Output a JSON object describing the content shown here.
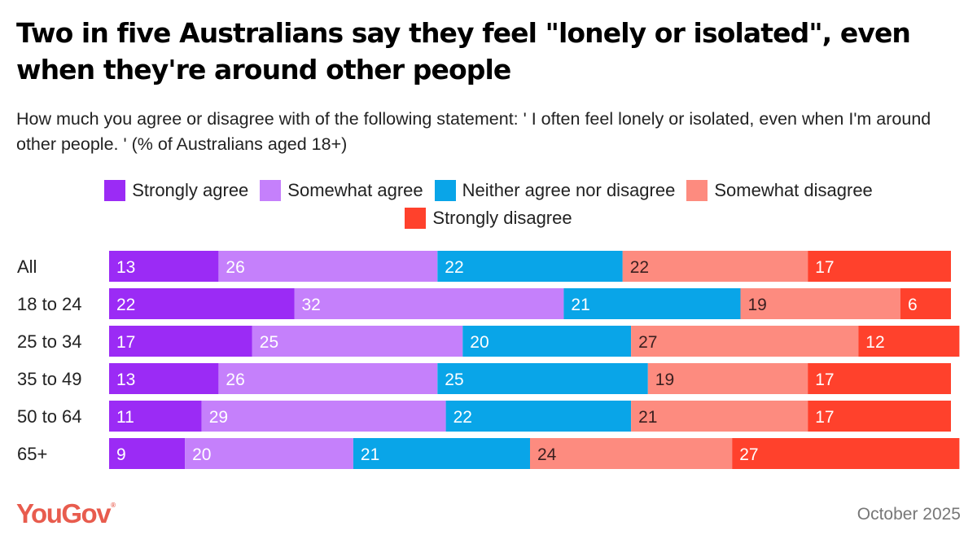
{
  "header": {
    "title": "Two in five Australians say they feel \"lonely or isolated\", even when they're around other people",
    "subtitle": "How much you agree or disagree with of the following statement: ' I often feel lonely or isolated, even when I'm around other people. ' (% of Australians aged 18+)"
  },
  "footer": {
    "logo_text": "YouGov",
    "logo_reg": "®",
    "date": "October 2025"
  },
  "chart_data": {
    "type": "bar",
    "orientation": "horizontal",
    "stacked": true,
    "title": "Two in five Australians say they feel \"lonely or isolated\", even when they're around other people",
    "xlabel": "",
    "ylabel": "",
    "unit": "%",
    "grid": false,
    "legend_position": "top-center",
    "categories": [
      "All",
      "18 to 24",
      "25 to 34",
      "35 to 49",
      "50 to 64",
      "65+"
    ],
    "series": [
      {
        "name": "Strongly agree",
        "color": "#9b2bf5",
        "label_color": "#ffffff",
        "values": [
          13,
          22,
          17,
          13,
          11,
          9
        ]
      },
      {
        "name": "Somewhat agree",
        "color": "#c580fb",
        "label_color": "#ffffff",
        "values": [
          26,
          32,
          25,
          26,
          29,
          20
        ]
      },
      {
        "name": "Neither agree nor disagree",
        "color": "#09a5e8",
        "label_color": "#ffffff",
        "values": [
          22,
          21,
          20,
          25,
          22,
          21
        ]
      },
      {
        "name": "Somewhat disagree",
        "color": "#fd8b7f",
        "label_color": "#3b2020",
        "values": [
          22,
          19,
          27,
          19,
          21,
          24
        ]
      },
      {
        "name": "Strongly disagree",
        "color": "#ff412c",
        "label_color": "#ffffff",
        "values": [
          17,
          6,
          12,
          17,
          17,
          27
        ]
      }
    ]
  }
}
